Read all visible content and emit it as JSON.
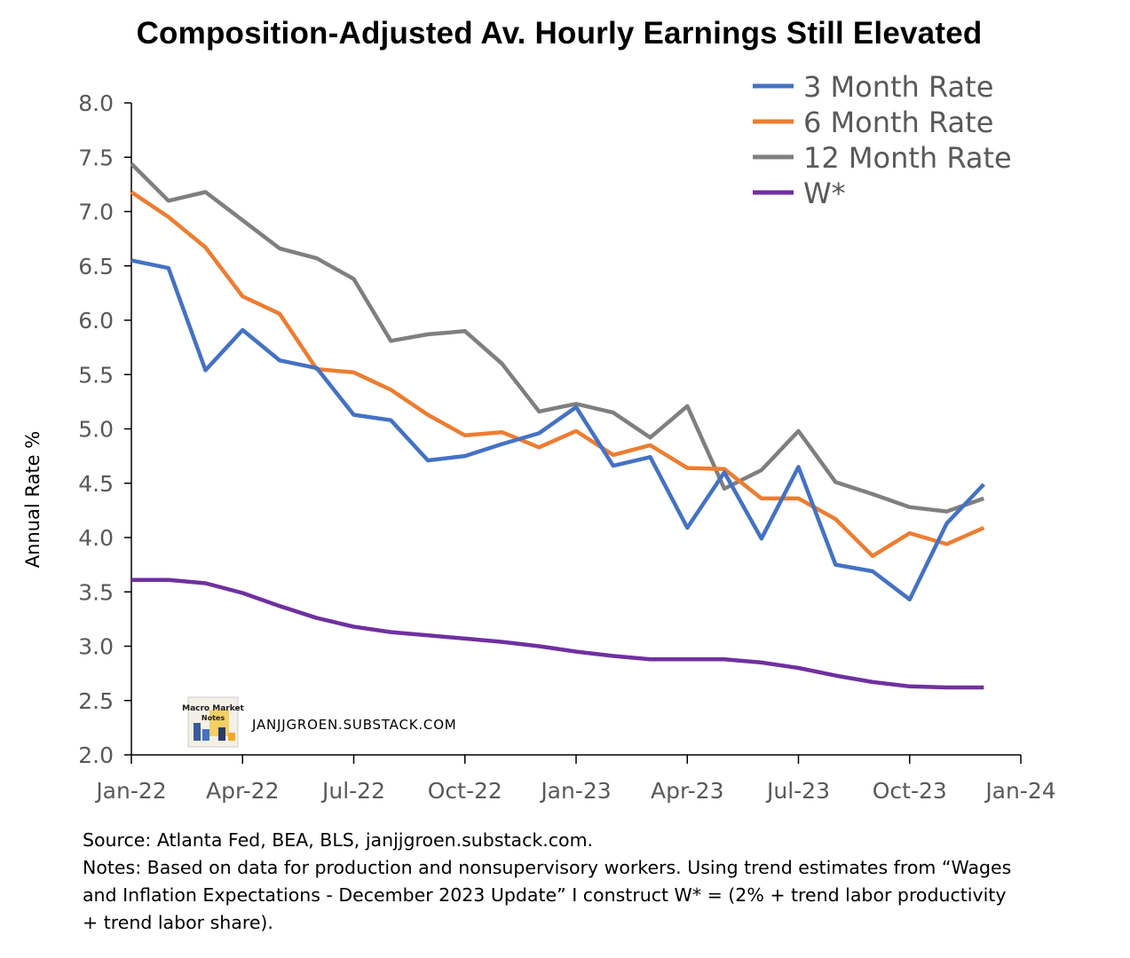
{
  "chart_data": {
    "type": "line",
    "title": "Composition-Adjusted Av. Hourly Earnings Still Elevated",
    "ylabel": "Annual Rate %",
    "xlabel": "",
    "ylim": [
      2.0,
      8.0
    ],
    "yticks": [
      "2.0",
      "2.5",
      "3.0",
      "3.5",
      "4.0",
      "4.5",
      "5.0",
      "5.5",
      "6.0",
      "6.5",
      "7.0",
      "7.5",
      "8.0"
    ],
    "xticks": [
      "Jan-22",
      "Apr-22",
      "Jul-22",
      "Oct-22",
      "Jan-23",
      "Apr-23",
      "Jul-23",
      "Oct-23",
      "Jan-24"
    ],
    "x": [
      "Jan-22",
      "Feb-22",
      "Mar-22",
      "Apr-22",
      "May-22",
      "Jun-22",
      "Jul-22",
      "Aug-22",
      "Sep-22",
      "Oct-22",
      "Nov-22",
      "Dec-22",
      "Jan-23",
      "Feb-23",
      "Mar-23",
      "Apr-23",
      "May-23",
      "Jun-23",
      "Jul-23",
      "Aug-23",
      "Sep-23",
      "Oct-23",
      "Nov-23",
      "Dec-23"
    ],
    "legend_position": "top-right",
    "grid": false,
    "series": [
      {
        "name": "3 Month Rate",
        "color": "#4472C4",
        "values": [
          6.55,
          6.48,
          5.54,
          5.91,
          5.63,
          5.56,
          5.13,
          5.08,
          4.71,
          4.75,
          4.86,
          4.96,
          5.2,
          4.66,
          4.74,
          4.09,
          4.6,
          3.99,
          4.65,
          3.75,
          3.69,
          3.43,
          4.13,
          4.49
        ]
      },
      {
        "name": "6 Month Rate",
        "color": "#ED7D31",
        "values": [
          7.18,
          6.95,
          6.67,
          6.22,
          6.06,
          5.55,
          5.52,
          5.36,
          5.13,
          4.94,
          4.97,
          4.83,
          4.98,
          4.76,
          4.85,
          4.64,
          4.63,
          4.36,
          4.36,
          4.17,
          3.83,
          4.04,
          3.94,
          4.09
        ]
      },
      {
        "name": "12 Month Rate",
        "color": "#7F7F7F",
        "values": [
          7.44,
          7.1,
          7.18,
          6.92,
          6.66,
          6.57,
          6.38,
          5.81,
          5.87,
          5.9,
          5.6,
          5.16,
          5.23,
          5.15,
          4.92,
          5.21,
          4.45,
          4.62,
          4.98,
          4.51,
          4.4,
          4.28,
          4.24,
          4.36
        ]
      },
      {
        "name": "W*",
        "color": "#7030A0",
        "values": [
          3.61,
          3.61,
          3.58,
          3.49,
          3.37,
          3.26,
          3.18,
          3.13,
          3.1,
          3.07,
          3.04,
          3.0,
          2.95,
          2.91,
          2.88,
          2.88,
          2.88,
          2.85,
          2.8,
          2.73,
          2.67,
          2.63,
          2.62,
          2.62
        ]
      }
    ]
  },
  "watermark": {
    "logo_text_line1": "Macro Market",
    "logo_text_line2": "Notes",
    "text": "JANJJGROEN.SUBSTACK.COM"
  },
  "footnote": {
    "line1": "Source: Atlanta Fed, BEA, BLS, janjjgroen.substack.com.",
    "line2": "Notes: Based on data for production and nonsupervisory workers. Using trend estimates from “Wages",
    "line3": "and Inflation Expectations - December 2023 Update” I construct W* = (2% + trend labor productivity",
    "line4": "+ trend labor share)."
  }
}
